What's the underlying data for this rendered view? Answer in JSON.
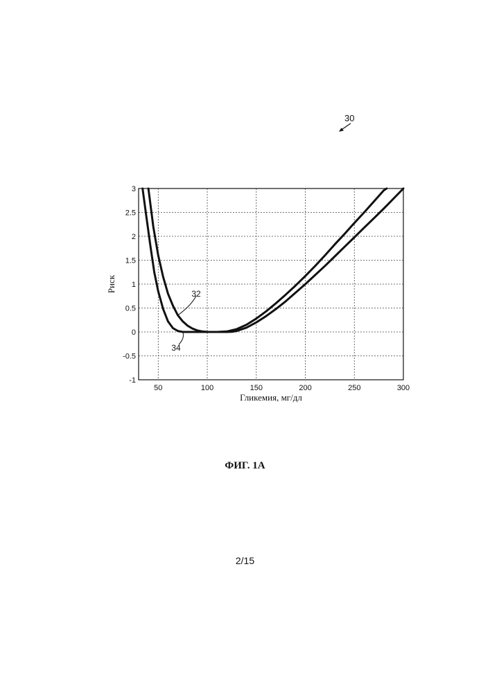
{
  "figure": {
    "reference_numeral": "30",
    "caption": "ФИГ. 1А",
    "page_number": "2/15"
  },
  "chart_data": {
    "type": "line",
    "title": "",
    "xlabel": "Гликемия, мг/дл",
    "ylabel": "Риск",
    "xlim": [
      30,
      300
    ],
    "ylim": [
      -1,
      3
    ],
    "xticks": [
      50,
      100,
      150,
      200,
      250,
      300
    ],
    "yticks": [
      3,
      2.5,
      2,
      1.5,
      1,
      0.5,
      0,
      -0.5,
      -1
    ],
    "grid": "dashed",
    "legend": "none",
    "series": [
      {
        "callout": "32",
        "points": [
          [
            40,
            3.0
          ],
          [
            45,
            2.2
          ],
          [
            50,
            1.6
          ],
          [
            55,
            1.15
          ],
          [
            60,
            0.8
          ],
          [
            65,
            0.55
          ],
          [
            70,
            0.35
          ],
          [
            75,
            0.22
          ],
          [
            80,
            0.13
          ],
          [
            85,
            0.07
          ],
          [
            90,
            0.03
          ],
          [
            95,
            0.01
          ],
          [
            100,
            0.002
          ],
          [
            110,
            0.0
          ],
          [
            120,
            0.01
          ],
          [
            130,
            0.06
          ],
          [
            140,
            0.15
          ],
          [
            150,
            0.28
          ],
          [
            160,
            0.43
          ],
          [
            170,
            0.6
          ],
          [
            180,
            0.78
          ],
          [
            190,
            0.97
          ],
          [
            200,
            1.17
          ],
          [
            210,
            1.38
          ],
          [
            220,
            1.6
          ],
          [
            230,
            1.83
          ],
          [
            240,
            2.05
          ],
          [
            250,
            2.28
          ],
          [
            260,
            2.5
          ],
          [
            270,
            2.73
          ],
          [
            280,
            2.96
          ],
          [
            283,
            3.0
          ]
        ]
      },
      {
        "callout": "34",
        "points": [
          [
            34,
            3.0
          ],
          [
            38,
            2.4
          ],
          [
            42,
            1.8
          ],
          [
            46,
            1.25
          ],
          [
            50,
            0.85
          ],
          [
            55,
            0.48
          ],
          [
            60,
            0.22
          ],
          [
            65,
            0.08
          ],
          [
            70,
            0.02
          ],
          [
            75,
            0.0
          ],
          [
            100,
            0.0
          ],
          [
            120,
            0.0
          ],
          [
            125,
            0.003
          ],
          [
            130,
            0.02
          ],
          [
            140,
            0.09
          ],
          [
            150,
            0.2
          ],
          [
            160,
            0.33
          ],
          [
            170,
            0.48
          ],
          [
            180,
            0.64
          ],
          [
            190,
            0.82
          ],
          [
            200,
            1.0
          ],
          [
            210,
            1.19
          ],
          [
            220,
            1.38
          ],
          [
            230,
            1.58
          ],
          [
            240,
            1.78
          ],
          [
            250,
            1.98
          ],
          [
            260,
            2.18
          ],
          [
            270,
            2.38
          ],
          [
            280,
            2.58
          ],
          [
            290,
            2.79
          ],
          [
            300,
            3.0
          ]
        ]
      }
    ]
  }
}
